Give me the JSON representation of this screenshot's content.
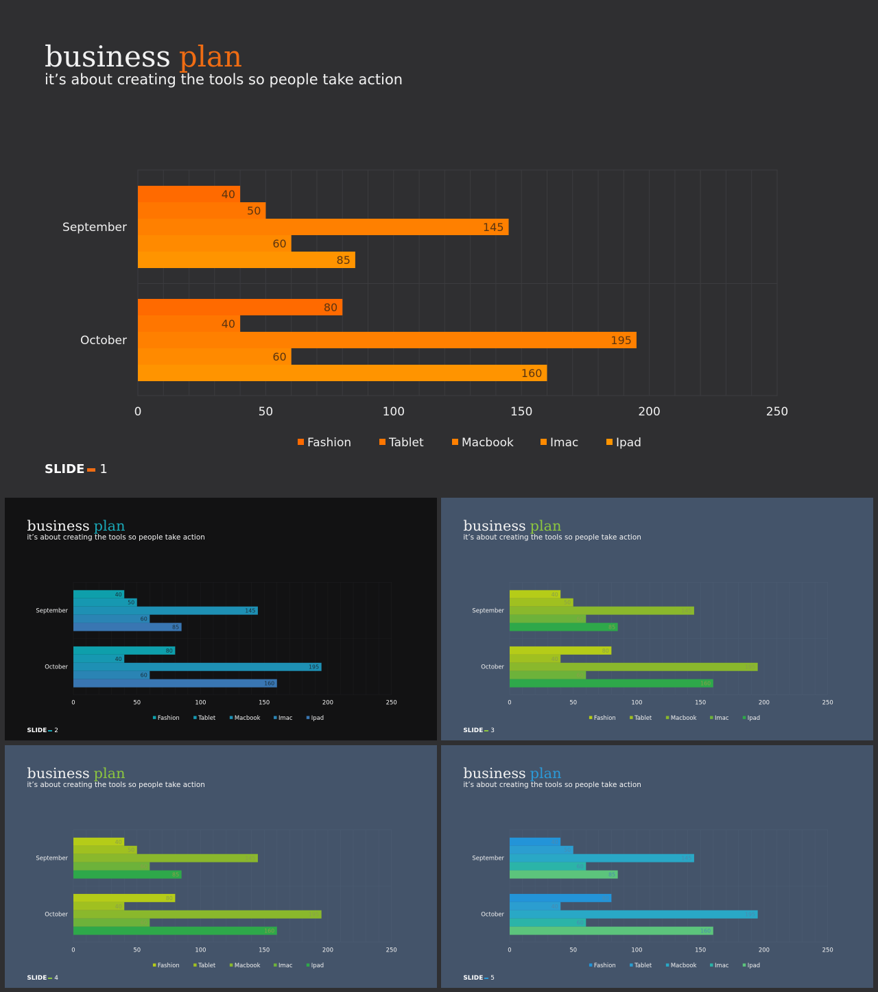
{
  "title_main": "business",
  "title_accent": "plan",
  "subtitle": "it’s about creating the tools so people take action",
  "footer_label": "SLIDE",
  "chart_data": [
    {
      "type": "bar",
      "orientation": "horizontal",
      "categories": [
        "September",
        "October"
      ],
      "series": [
        {
          "name": "Fashion",
          "values": [
            40,
            80
          ]
        },
        {
          "name": "Tablet",
          "values": [
            50,
            40
          ]
        },
        {
          "name": "Macbook",
          "values": [
            145,
            195
          ]
        },
        {
          "name": "Imac",
          "values": [
            60,
            60
          ]
        },
        {
          "name": "Ipad",
          "values": [
            85,
            160
          ]
        }
      ],
      "xlim": [
        0,
        250
      ],
      "xticks": [
        0,
        50,
        100,
        150,
        200,
        250
      ],
      "grid": true,
      "legend": "bottom",
      "data_labels": true
    }
  ],
  "slides": [
    {
      "number": "1",
      "background": "#2f2f31",
      "accent": "#ef6c13",
      "series_colors": [
        "#ff6a00",
        "#ff7600",
        "#ff8000",
        "#ff8a00",
        "#ff9400"
      ],
      "label_color": "#5b3410"
    },
    {
      "number": "2",
      "background": "#121213",
      "accent": "#1aa7b6",
      "series_colors": [
        "#0e9fab",
        "#1698b1",
        "#1e90b4",
        "#2a84b4",
        "#3976b2"
      ],
      "label_color": "#1a2e3a"
    },
    {
      "number": "3",
      "background": "#44546a",
      "accent": "#8cc63f",
      "series_colors": [
        "#b5cc18",
        "#a0c020",
        "#8ab82c",
        "#6db23a",
        "#2ea84a"
      ],
      "label_color": "#8aa04a"
    },
    {
      "number": "4",
      "background": "#44546a",
      "accent": "#8cc63f",
      "series_colors": [
        "#b5cc18",
        "#a0c020",
        "#8ab82c",
        "#6db23a",
        "#2ea84a"
      ],
      "label_color": "#8aa04a"
    },
    {
      "number": "5",
      "background": "#44546a",
      "accent": "#2b9ad8",
      "series_colors": [
        "#2394d8",
        "#2b9ed0",
        "#29a8c6",
        "#2bb4a8",
        "#5cc47c"
      ],
      "label_color": "#4a8ab0"
    }
  ]
}
